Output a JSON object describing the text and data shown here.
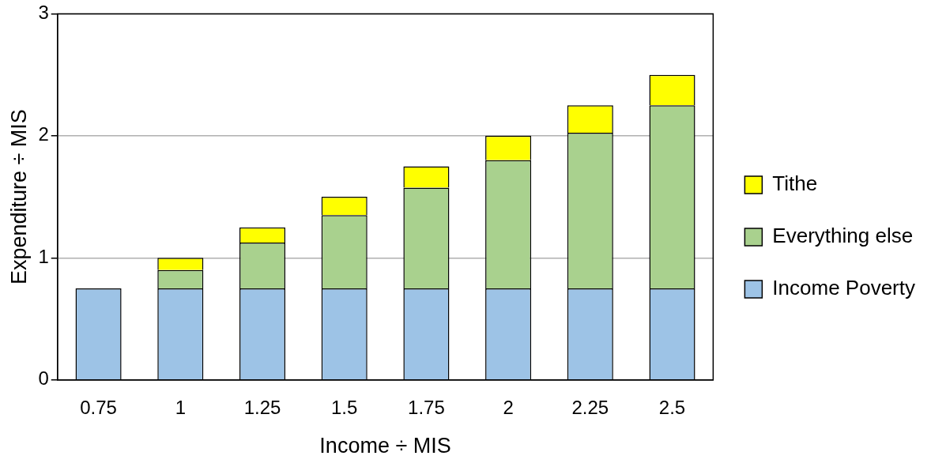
{
  "chart_data": {
    "type": "bar",
    "stacked": true,
    "xlabel": "Income ÷ MIS",
    "ylabel": "Expenditure ÷ MIS",
    "categories": [
      "0.75",
      "1",
      "1.25",
      "1.5",
      "1.75",
      "2",
      "2.25",
      "2.5"
    ],
    "series": [
      {
        "name": "Income Poverty",
        "color": "#9dc3e6",
        "values": [
          0.75,
          0.75,
          0.75,
          0.75,
          0.75,
          0.75,
          0.75,
          0.75
        ]
      },
      {
        "name": "Everything else",
        "color": "#a9d18e",
        "values": [
          0,
          0.15,
          0.375,
          0.6,
          0.825,
          1.05,
          1.275,
          1.5
        ]
      },
      {
        "name": "Tithe",
        "color": "#ffff00",
        "values": [
          0,
          0.1,
          0.125,
          0.15,
          0.175,
          0.2,
          0.225,
          0.25
        ]
      }
    ],
    "ylim": [
      0,
      3
    ],
    "yticks": [
      0,
      1,
      2,
      3
    ],
    "grid": "y",
    "legend": "right"
  }
}
